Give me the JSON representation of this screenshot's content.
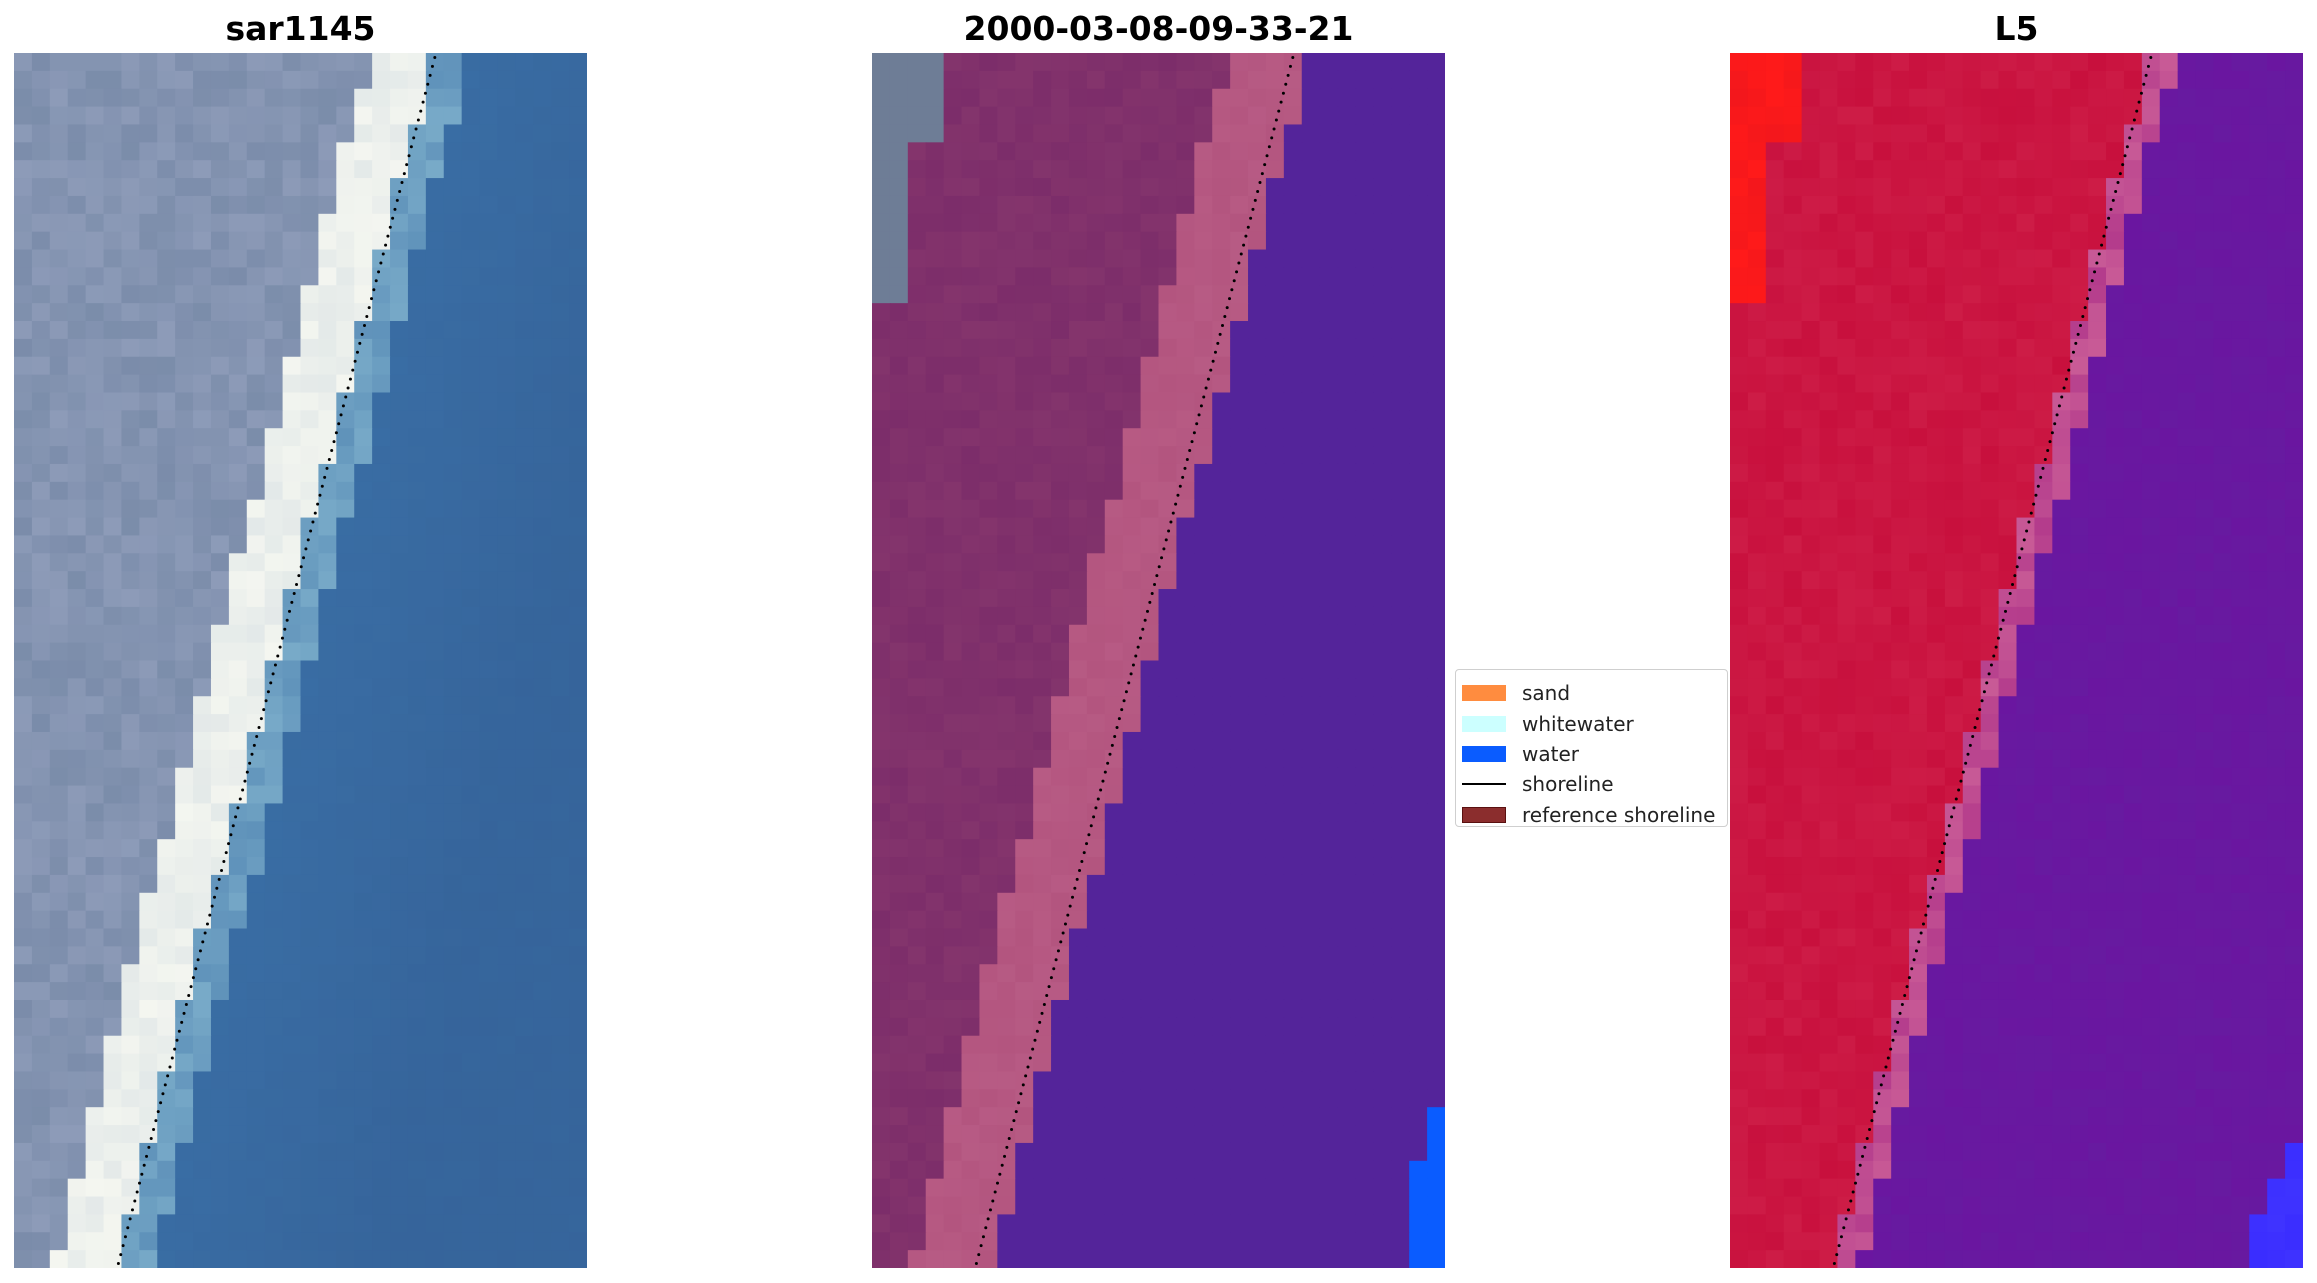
{
  "panels": [
    {
      "title": "sar1145"
    },
    {
      "title": "2000-03-08-09-33-21"
    },
    {
      "title": "L5"
    }
  ],
  "legend": {
    "items": [
      {
        "label": "sand",
        "type": "patch",
        "color": "#ff8c3f",
        "edge": "#ff8c3f"
      },
      {
        "label": "whitewater",
        "type": "patch",
        "color": "#ccffff",
        "edge": "#ccffff"
      },
      {
        "label": "water",
        "type": "patch",
        "color": "#0a5cff",
        "edge": "#0a5cff"
      },
      {
        "label": "shoreline",
        "type": "line",
        "color": "#000000"
      },
      {
        "label": "reference shoreline",
        "type": "patch",
        "color": "#8b2d2d",
        "edge": "#5a1010"
      }
    ]
  },
  "colors": {
    "rgb_water": "#3a6ea5",
    "rgb_beach": "#f4f6f0",
    "rgb_land": "#8d9bb8",
    "classified_water": "#54249a",
    "classified_sand_overlay": "#b3557f",
    "classified_land": "#7c2d6a",
    "classified_open_water": "#0a5cff",
    "index_land": "#c8103d",
    "index_water": "#6a16a0",
    "index_strong_land": "#ff1a1a",
    "index_strong_water": "#3a2dff"
  }
}
